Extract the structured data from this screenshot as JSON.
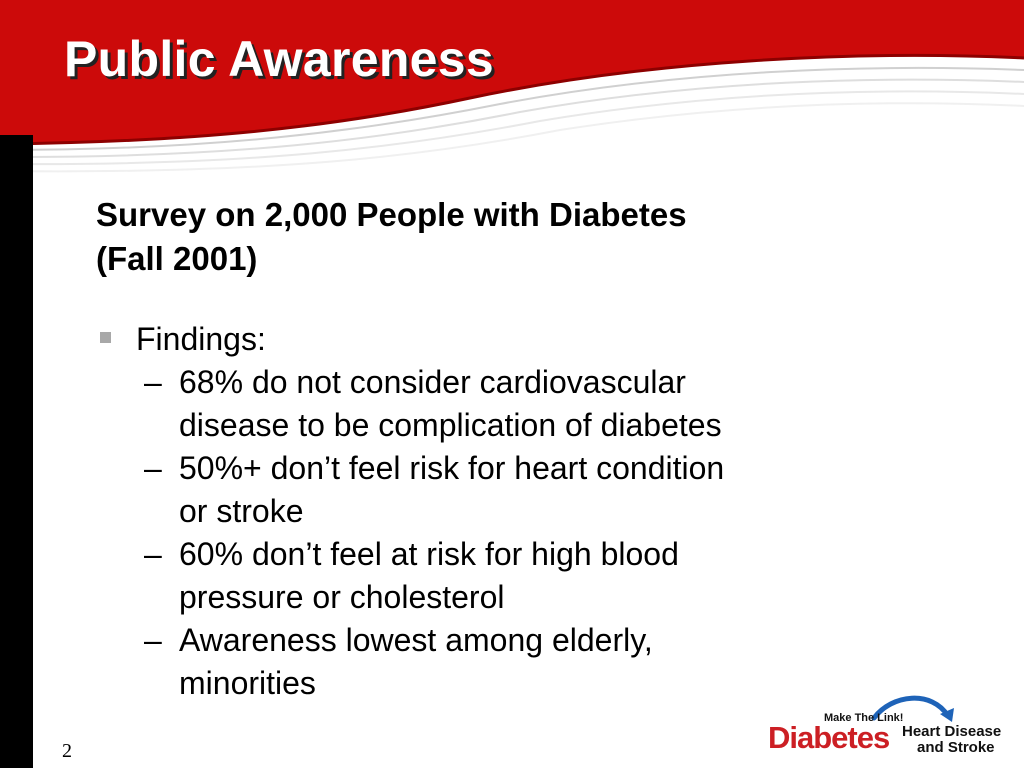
{
  "slide": {
    "title": "Public Awareness",
    "subtitle_lines": [
      "Survey on 2,000 People with Diabetes",
      "(Fall 2001)"
    ],
    "bullet": {
      "label": "Findings:",
      "items": [
        {
          "lines": [
            "68% do not consider cardiovascular",
            "disease to be complication of diabetes"
          ]
        },
        {
          "lines": [
            "50%+ don’t feel risk for heart condition",
            "or stroke"
          ]
        },
        {
          "lines": [
            "60% don’t feel at risk for high blood",
            "pressure or cholesterol"
          ]
        },
        {
          "lines": [
            "Awareness lowest among elderly,",
            "minorities"
          ]
        }
      ]
    },
    "dash": "–",
    "page_number": "2"
  },
  "logo": {
    "tagline": "Make The Link!",
    "brand": "Diabetes",
    "line1": "Heart Disease",
    "line2": "and Stroke"
  },
  "colors": {
    "banner_red": "#cc0a0a",
    "title_text": "#ffffff",
    "left_bar": "#000000",
    "logo_red": "#cc1f24",
    "logo_arc_blue": "#1e63b8",
    "bullet_marker": "#a8a8a8"
  }
}
